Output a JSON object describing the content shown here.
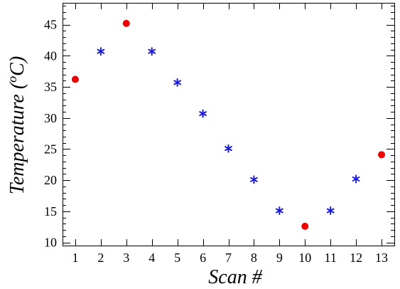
{
  "chart_data": {
    "type": "scatter",
    "title": "",
    "xlabel": "Scan #",
    "ylabel_main": "Temperature (",
    "ylabel_sup": "o",
    "ylabel_tail": "C)",
    "xlim": [
      0.5,
      13.5
    ],
    "ylim": [
      9.5,
      48.5
    ],
    "x_ticks": [
      1,
      2,
      3,
      4,
      5,
      6,
      7,
      8,
      9,
      10,
      11,
      12,
      13
    ],
    "y_ticks": [
      10,
      15,
      20,
      25,
      30,
      35,
      40,
      45
    ],
    "grid": false,
    "series": [
      {
        "marker": "circle",
        "color": "#ee0000",
        "points": [
          {
            "x": 1,
            "y": 36.2
          },
          {
            "x": 3,
            "y": 45.2
          },
          {
            "x": 10,
            "y": 12.6
          },
          {
            "x": 13,
            "y": 24.1
          }
        ]
      },
      {
        "marker": "asterisk",
        "color": "#1a1adf",
        "points": [
          {
            "x": 2,
            "y": 40.7
          },
          {
            "x": 4,
            "y": 40.7
          },
          {
            "x": 5,
            "y": 35.7
          },
          {
            "x": 6,
            "y": 30.7
          },
          {
            "x": 7,
            "y": 25.1
          },
          {
            "x": 8,
            "y": 20.1
          },
          {
            "x": 9,
            "y": 15.1
          },
          {
            "x": 11,
            "y": 15.1
          },
          {
            "x": 12,
            "y": 20.2
          }
        ]
      }
    ]
  }
}
